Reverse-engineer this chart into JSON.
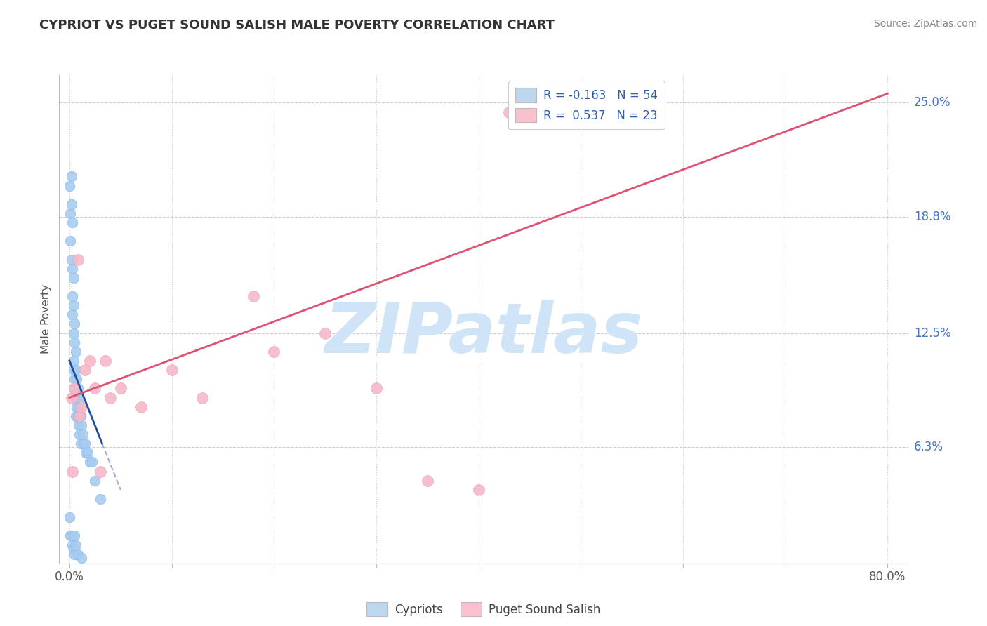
{
  "title": "CYPRIOT VS PUGET SOUND SALISH MALE POVERTY CORRELATION CHART",
  "source": "Source: ZipAtlas.com",
  "ylabel": "Male Poverty",
  "xlim": [
    -1.0,
    82.0
  ],
  "ylim": [
    0.0,
    26.5
  ],
  "ytick_vals": [
    6.3,
    12.5,
    18.8,
    25.0
  ],
  "ytick_labels": [
    "6.3%",
    "12.5%",
    "18.8%",
    "25.0%"
  ],
  "xtick_vals": [
    0.0,
    10.0,
    20.0,
    30.0,
    40.0,
    50.0,
    60.0,
    70.0,
    80.0
  ],
  "blue_dot_color": "#A8CCEF",
  "blue_dot_edge": "#8ABBE8",
  "pink_dot_color": "#F5B8C8",
  "pink_dot_edge": "#F0A0B5",
  "blue_line_color": "#1F4E9E",
  "pink_line_color": "#E05070",
  "dash_color": "#AAAACC",
  "legend_blue_face": "#BDD7EE",
  "legend_pink_face": "#F9C0CD",
  "legend_text_color": "#2E5EA8",
  "legend_label_blue": "R = -0.163   N = 54",
  "legend_label_pink": "R =  0.537   N = 23",
  "watermark": "ZIPatlas",
  "watermark_color": "#D0E4F7",
  "grid_color": "#CCCCCC",
  "axis_color": "#BBBBBB",
  "ytick_color": "#4472C4",
  "blue_x": [
    0.0,
    0.1,
    0.1,
    0.2,
    0.2,
    0.2,
    0.3,
    0.3,
    0.3,
    0.3,
    0.4,
    0.4,
    0.4,
    0.4,
    0.4,
    0.5,
    0.5,
    0.5,
    0.5,
    0.6,
    0.6,
    0.6,
    0.6,
    0.7,
    0.7,
    0.7,
    0.8,
    0.8,
    0.9,
    0.9,
    1.0,
    1.0,
    1.1,
    1.1,
    1.2,
    1.3,
    1.4,
    1.5,
    1.6,
    1.8,
    2.0,
    2.2,
    2.5,
    3.0,
    0.0,
    0.1,
    0.2,
    0.3,
    0.4,
    0.5,
    0.5,
    0.6,
    0.8,
    1.2
  ],
  "blue_y": [
    20.5,
    19.0,
    17.5,
    21.0,
    19.5,
    16.5,
    18.5,
    16.0,
    14.5,
    13.5,
    15.5,
    14.0,
    12.5,
    11.0,
    10.5,
    13.0,
    12.0,
    10.0,
    9.5,
    11.5,
    10.5,
    9.0,
    8.0,
    10.0,
    9.0,
    8.5,
    9.5,
    8.0,
    8.5,
    7.5,
    9.0,
    7.0,
    8.0,
    6.5,
    7.5,
    7.0,
    6.5,
    6.5,
    6.0,
    6.0,
    5.5,
    5.5,
    4.5,
    3.5,
    2.5,
    1.5,
    1.5,
    1.0,
    0.8,
    1.5,
    0.5,
    1.0,
    0.5,
    0.3
  ],
  "pink_x": [
    0.2,
    0.5,
    0.8,
    1.0,
    1.5,
    2.0,
    2.5,
    3.5,
    4.0,
    5.0,
    7.0,
    10.0,
    13.0,
    18.0,
    20.0,
    25.0,
    30.0,
    35.0,
    40.0,
    43.0,
    0.3,
    1.2,
    3.0
  ],
  "pink_y": [
    9.0,
    9.5,
    16.5,
    8.0,
    10.5,
    11.0,
    9.5,
    11.0,
    9.0,
    9.5,
    8.5,
    10.5,
    9.0,
    14.5,
    11.5,
    12.5,
    9.5,
    4.5,
    4.0,
    24.5,
    5.0,
    8.5,
    5.0
  ],
  "blue_line_x0": 0.0,
  "blue_line_x1": 3.2,
  "blue_line_y0": 11.0,
  "blue_line_y1": 6.5,
  "blue_dash_x0": 3.2,
  "blue_dash_x1": 5.0,
  "blue_dash_y0": 6.5,
  "blue_dash_y1": 4.0,
  "pink_line_x0": 0.0,
  "pink_line_x1": 80.0,
  "pink_line_y0": 9.0,
  "pink_line_y1": 25.5
}
